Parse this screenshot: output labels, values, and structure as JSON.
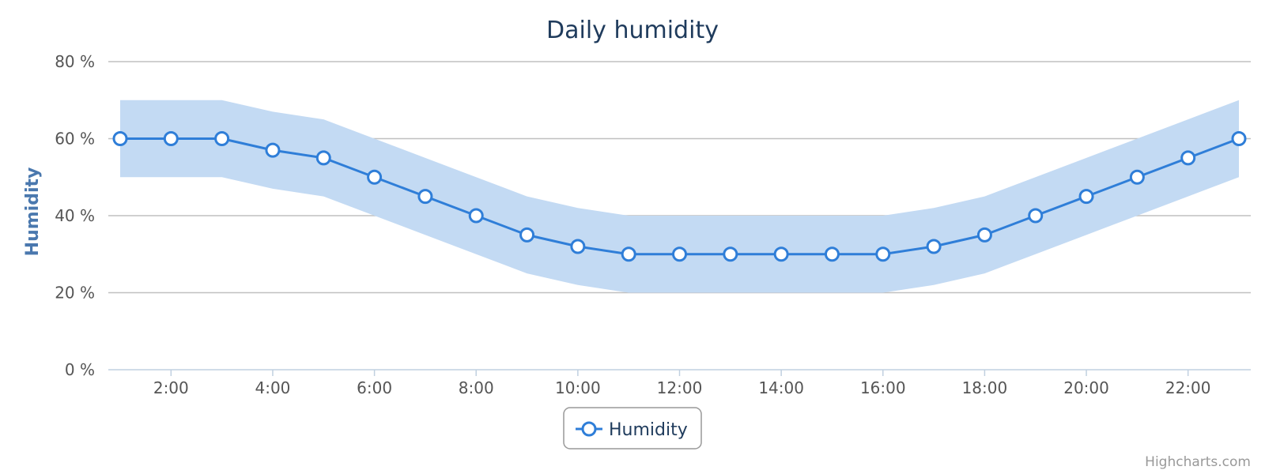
{
  "chart_data": {
    "type": "line",
    "title": "Daily humidity",
    "ylabel": "Humidity",
    "xlabel": "",
    "y_tick_labels": [
      "0 %",
      "20 %",
      "40 %",
      "60 %",
      "80 %"
    ],
    "y_ticks": [
      0,
      20,
      40,
      60,
      80
    ],
    "ylim": [
      0,
      80
    ],
    "xlim": [
      1,
      23
    ],
    "x_tick_labels": [
      "2:00",
      "4:00",
      "6:00",
      "8:00",
      "10:00",
      "12:00",
      "14:00",
      "16:00",
      "18:00",
      "20:00",
      "22:00"
    ],
    "x_ticks": [
      2,
      4,
      6,
      8,
      10,
      12,
      14,
      16,
      18,
      20,
      22
    ],
    "grid": true,
    "legend_position": "bottom-center",
    "series": [
      {
        "name": "Humidity",
        "color": "#2f7ed8",
        "x": [
          1,
          2,
          3,
          4,
          5,
          6,
          7,
          8,
          9,
          10,
          11,
          12,
          13,
          14,
          15,
          16,
          17,
          18,
          19,
          20,
          21,
          22,
          23
        ],
        "values": [
          60,
          60,
          60,
          57,
          55,
          50,
          45,
          40,
          35,
          32,
          30,
          30,
          30,
          30,
          30,
          30,
          32,
          35,
          40,
          45,
          50,
          55,
          60
        ]
      }
    ],
    "range_band": {
      "color": "#c3daf3",
      "x": [
        1,
        2,
        3,
        4,
        5,
        6,
        7,
        8,
        9,
        10,
        11,
        12,
        13,
        14,
        15,
        16,
        17,
        18,
        19,
        20,
        21,
        22,
        23
      ],
      "low": [
        50,
        50,
        50,
        47,
        45,
        40,
        35,
        30,
        25,
        22,
        20,
        20,
        20,
        20,
        20,
        20,
        22,
        25,
        30,
        35,
        40,
        45,
        50
      ],
      "high": [
        70,
        70,
        70,
        67,
        65,
        60,
        55,
        50,
        45,
        42,
        40,
        40,
        40,
        40,
        40,
        40,
        42,
        45,
        50,
        55,
        60,
        65,
        70
      ]
    }
  },
  "credits": "Highcharts.com"
}
